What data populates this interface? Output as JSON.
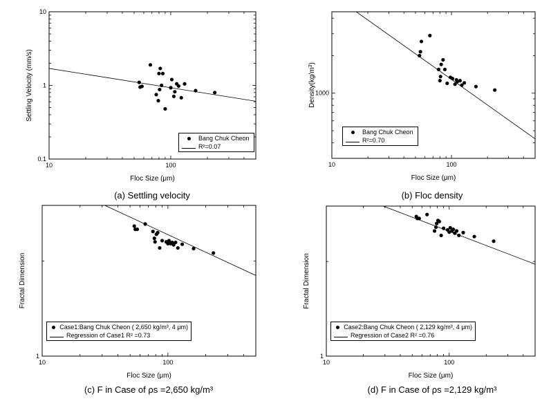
{
  "chart_data": [
    {
      "type": "scatter",
      "xlabel": "Floc Size (μm)",
      "ylabel": "Settling Velocity (mm/s)",
      "xscale": "log",
      "yscale": "log",
      "xlim": [
        10,
        500
      ],
      "ylim": [
        0.1,
        10
      ],
      "xticks": [
        "10",
        "100"
      ],
      "yticks": [
        "0.1",
        "1",
        "10"
      ],
      "caption": "(a) Settling velocity",
      "legend_position": "bottom-right",
      "series": [
        {
          "name": "Bang Chuk Cheon",
          "kind": "points",
          "x": [
            55,
            56,
            58,
            68,
            76,
            79,
            80,
            81,
            82,
            84,
            86,
            90,
            100,
            102,
            106,
            108,
            112,
            116,
            122,
            130,
            160,
            230
          ],
          "y": [
            1.1,
            0.95,
            0.97,
            1.9,
            0.75,
            0.62,
            1.45,
            0.88,
            1.7,
            1.0,
            1.45,
            0.48,
            0.93,
            1.2,
            0.71,
            0.82,
            1.05,
            0.98,
            0.68,
            1.05,
            0.85,
            0.8
          ]
        },
        {
          "name": "R²=0.07",
          "kind": "line",
          "x": [
            10,
            500
          ],
          "y": [
            1.7,
            0.61
          ]
        }
      ]
    },
    {
      "type": "scatter",
      "xlabel": "Floc Size (μm)",
      "ylabel": "Density(kg/m³)",
      "xscale": "log",
      "yscale": "log",
      "xlim": [
        10,
        500
      ],
      "ylim": [
        300,
        4500
      ],
      "xticks": [
        "10",
        "100"
      ],
      "yticks": [
        "1000"
      ],
      "caption": "(b) Floc density",
      "legend_position": "bottom-left",
      "series": [
        {
          "name": "Bang Chuk Cheon",
          "kind": "points",
          "x": [
            54,
            55,
            56,
            66,
            78,
            80,
            81,
            82,
            85,
            88,
            92,
            98,
            102,
            107,
            110,
            112,
            118,
            122,
            128,
            160,
            230
          ],
          "y": [
            2000,
            2150,
            2600,
            2900,
            1550,
            1260,
            1360,
            1700,
            1850,
            1550,
            1200,
            1340,
            1310,
            1180,
            1280,
            1240,
            1260,
            1160,
            1210,
            1130,
            1060
          ]
        },
        {
          "name": "R²=0.70",
          "kind": "line",
          "x": [
            16,
            500
          ],
          "y": [
            4500,
            430
          ]
        }
      ]
    },
    {
      "type": "scatter",
      "xlabel": "Floc Size (μm)",
      "ylabel": "Fractal Dimension",
      "xscale": "log",
      "yscale": "log",
      "xlim": [
        10,
        500
      ],
      "ylim": [
        1,
        3
      ],
      "xticks": [
        "10",
        "100"
      ],
      "yticks": [
        "1"
      ],
      "caption": "(c) F in Case of ρs =2,650 kg/m³",
      "legend_position": "bottom-left",
      "series": [
        {
          "name": "Case1:Bang Chuk Cheon ( 2,650 kg/m³, 4 μm)",
          "kind": "points",
          "x": [
            54,
            55,
            57,
            66,
            76,
            78,
            79,
            81,
            83,
            86,
            90,
            97,
            100,
            102,
            105,
            108,
            111,
            115,
            120,
            130,
            160,
            230
          ],
          "y": [
            2.58,
            2.52,
            2.52,
            2.62,
            2.48,
            2.36,
            2.3,
            2.43,
            2.46,
            2.2,
            2.32,
            2.3,
            2.27,
            2.32,
            2.27,
            2.29,
            2.25,
            2.29,
            2.2,
            2.26,
            2.19,
            2.12
          ]
        },
        {
          "name": "Regression of Case1 R² =0.73",
          "kind": "line",
          "x": [
            31.5,
            500
          ],
          "y": [
            3.0,
            1.8
          ]
        }
      ]
    },
    {
      "type": "scatter",
      "xlabel": "Floc Size (μm)",
      "ylabel": "Fractal Dimension",
      "xscale": "log",
      "yscale": "log",
      "xlim": [
        10,
        500
      ],
      "ylim": [
        1,
        3
      ],
      "xticks": [
        "10",
        "100"
      ],
      "yticks": [
        "1"
      ],
      "caption": "(d) F in Case of ρs =2,129 kg/m³",
      "legend_position": "bottom-left",
      "series": [
        {
          "name": "Case2:Bang Chuk Cheon ( 2,129 kg/m³, 4 μm)",
          "kind": "points",
          "x": [
            54,
            55,
            57,
            66,
            76,
            78,
            79,
            81,
            83,
            86,
            90,
            97,
            100,
            102,
            105,
            108,
            111,
            115,
            120,
            130,
            160,
            230
          ],
          "y": [
            2.78,
            2.74,
            2.74,
            2.82,
            2.5,
            2.57,
            2.64,
            2.7,
            2.68,
            2.42,
            2.55,
            2.52,
            2.48,
            2.56,
            2.5,
            2.53,
            2.46,
            2.5,
            2.42,
            2.47,
            2.4,
            2.32
          ]
        },
        {
          "name": "Regression of Case2 R² =0.76",
          "kind": "line",
          "x": [
            29,
            500
          ],
          "y": [
            3.0,
            1.96
          ]
        }
      ]
    }
  ]
}
